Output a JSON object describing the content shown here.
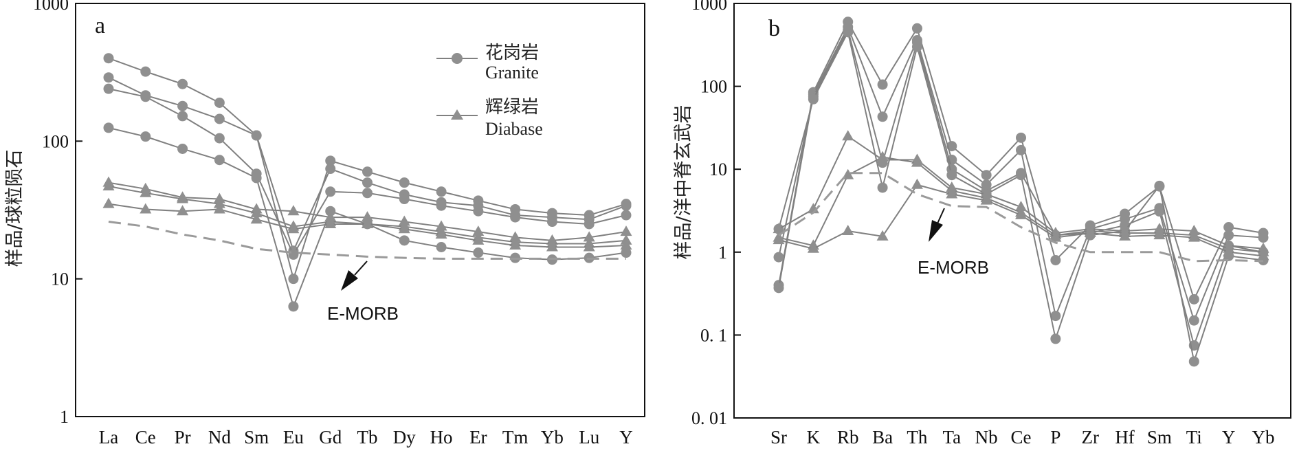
{
  "legend": {
    "granite_cn": "花岗岩",
    "granite_en": "Granite",
    "diabase_cn": "辉绿岩",
    "diabase_en": "Diabase"
  },
  "colors": {
    "series": "#808080",
    "marker": "#8f8f8f",
    "emorb": "#9a9a9a",
    "axis": "#111111"
  },
  "chart_data": [
    {
      "type": "line",
      "panel_label": "a",
      "ylabel": "样品/球粒陨石",
      "yscale": "log",
      "ylim": [
        1,
        1000
      ],
      "yticks": [
        1,
        10,
        100,
        1000
      ],
      "ytick_labels": [
        "1",
        "10",
        "100",
        "1000"
      ],
      "categories": [
        "La",
        "Ce",
        "Pr",
        "Nd",
        "Sm",
        "Eu",
        "Gd",
        "Tb",
        "Dy",
        "Ho",
        "Er",
        "Tm",
        "Yb",
        "Lu",
        "Y"
      ],
      "annotation": "E-MORB",
      "series": [
        {
          "group": "granite",
          "values": [
            400,
            320,
            260,
            190,
            110,
            10,
            72,
            60,
            50,
            43,
            37,
            32,
            30,
            29,
            35
          ]
        },
        {
          "group": "granite",
          "values": [
            290,
            215,
            180,
            145,
            110,
            16,
            63,
            50,
            41,
            36,
            34,
            29,
            28,
            27,
            34
          ]
        },
        {
          "group": "granite",
          "values": [
            240,
            210,
            152,
            105,
            58,
            15,
            43,
            42,
            38,
            34,
            31,
            28,
            26,
            25,
            29
          ]
        },
        {
          "group": "granite",
          "values": [
            125,
            108,
            88,
            73,
            54,
            6.3,
            31,
            25,
            19,
            17,
            15.5,
            14.2,
            13.8,
            14.2,
            15.5
          ]
        },
        {
          "group": "diabase",
          "values": [
            50,
            45,
            39,
            38,
            32,
            31,
            28,
            28,
            26,
            24,
            22,
            20,
            19,
            20,
            22
          ]
        },
        {
          "group": "diabase",
          "values": [
            47,
            42,
            38,
            35,
            30,
            24,
            26,
            25,
            24,
            22,
            20,
            18.5,
            18,
            18,
            19
          ]
        },
        {
          "group": "diabase",
          "values": [
            35,
            32,
            31,
            32,
            27,
            23,
            25,
            25,
            23,
            21,
            19,
            17.5,
            17,
            17,
            17.5
          ]
        },
        {
          "group": "emorb",
          "values": [
            26,
            24,
            21,
            19,
            16.5,
            15.5,
            15,
            14.5,
            14.2,
            14,
            14,
            14,
            14,
            14,
            14
          ]
        }
      ]
    },
    {
      "type": "line",
      "panel_label": "b",
      "ylabel": "样品/洋中脊玄武岩",
      "yscale": "log",
      "ylim": [
        0.01,
        1000
      ],
      "yticks": [
        0.01,
        0.1,
        1,
        10,
        100,
        1000
      ],
      "ytick_labels": [
        "0. 01",
        "0. 1",
        "1",
        "10",
        "100",
        "1000"
      ],
      "categories": [
        "Sr",
        "K",
        "Rb",
        "Ba",
        "Th",
        "Ta",
        "Nb",
        "Ce",
        "P",
        "Zr",
        "Hf",
        "Sm",
        "Ti",
        "Y",
        "Yb"
      ],
      "annotation": "E-MORB",
      "series": [
        {
          "group": "granite",
          "values": [
            0.4,
            85,
            600,
            105,
            500,
            19,
            8.5,
            24,
            0.8,
            2.1,
            2.9,
            6.2,
            0.27,
            2.0,
            1.7
          ]
        },
        {
          "group": "granite",
          "values": [
            0.37,
            80,
            520,
            43,
            360,
            13,
            6.5,
            17,
            0.17,
            1.9,
            2.5,
            3.4,
            0.15,
            1.6,
            1.5
          ]
        },
        {
          "group": "granite",
          "values": [
            0.87,
            75,
            480,
            12,
            340,
            10,
            5.5,
            9,
            1.6,
            1.7,
            2.1,
            3.1,
            0.075,
            1.2,
            1.0
          ]
        },
        {
          "group": "granite",
          "values": [
            1.9,
            70,
            450,
            6,
            300,
            8.5,
            5.0,
            8.5,
            0.09,
            1.6,
            1.8,
            6.3,
            0.048,
            0.9,
            0.8
          ]
        },
        {
          "group": "diabase",
          "values": [
            1.9,
            3.3,
            25,
            13,
            13,
            6.0,
            5.0,
            3.5,
            1.7,
            1.9,
            1.8,
            1.9,
            1.8,
            1.2,
            1.1
          ]
        },
        {
          "group": "diabase",
          "values": [
            1.5,
            1.2,
            8.5,
            14,
            12,
            5.5,
            4.5,
            3.0,
            1.6,
            1.8,
            1.7,
            1.7,
            1.6,
            1.1,
            1.0
          ]
        },
        {
          "group": "diabase",
          "values": [
            1.4,
            1.1,
            1.8,
            1.55,
            6.5,
            5.0,
            4.2,
            2.8,
            1.5,
            1.7,
            1.55,
            1.6,
            1.5,
            1.0,
            0.9
          ]
        },
        {
          "group": "emorb",
          "values": [
            1.6,
            3.0,
            9,
            9,
            5.0,
            3.6,
            3.5,
            2.0,
            1.3,
            1.0,
            1.0,
            1.0,
            0.78,
            0.8,
            0.78
          ]
        }
      ]
    }
  ]
}
